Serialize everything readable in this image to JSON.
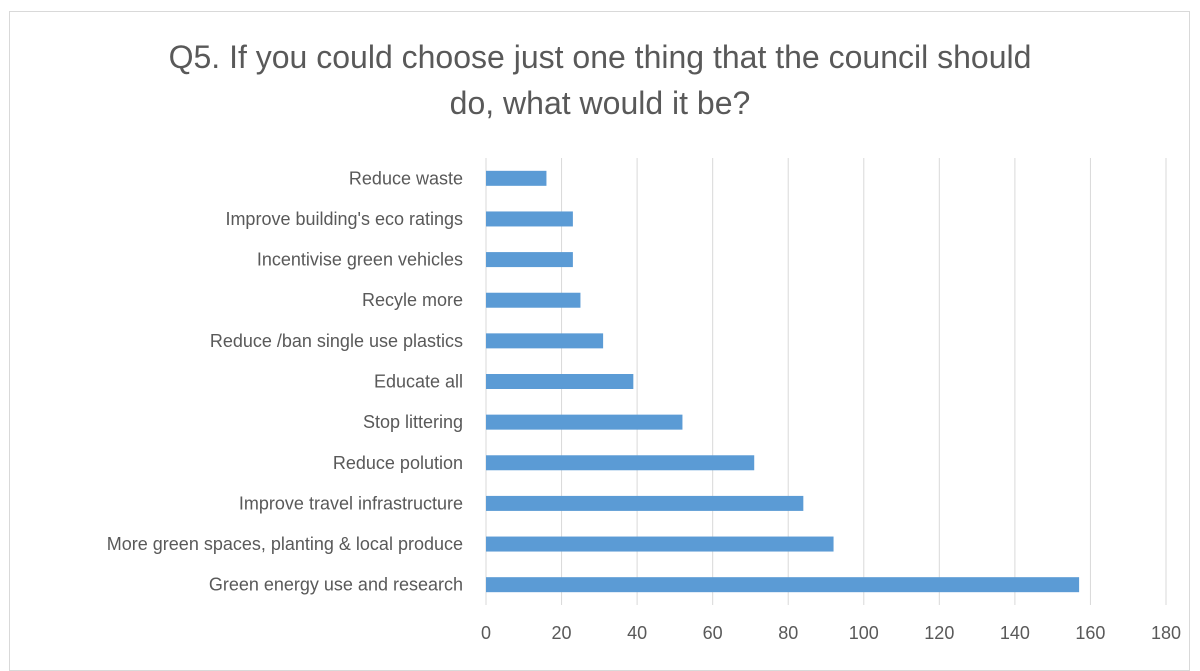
{
  "chart_data": {
    "type": "bar",
    "orientation": "horizontal",
    "title_lines": [
      "Q5. If you could choose just one thing that the council should",
      "do, what would it be?"
    ],
    "categories": [
      "Reduce waste",
      "Improve building's eco ratings",
      "Incentivise green vehicles",
      "Recyle more",
      "Reduce /ban single use plastics",
      "Educate all",
      "Stop littering",
      "Reduce polution",
      "Improve travel infrastructure",
      "More green spaces, planting & local produce",
      "Green energy use and research"
    ],
    "values": [
      16,
      23,
      23,
      25,
      31,
      39,
      52,
      71,
      84,
      92,
      157
    ],
    "xlim": [
      0,
      180
    ],
    "x_ticks": [
      "0",
      "20",
      "40",
      "60",
      "80",
      "100",
      "120",
      "140",
      "160",
      "180"
    ],
    "xlabel": "",
    "ylabel": "",
    "grid": "vertical",
    "legend": "none",
    "bar_color": "#5b9bd5",
    "grid_color": "#d9d9d9"
  }
}
